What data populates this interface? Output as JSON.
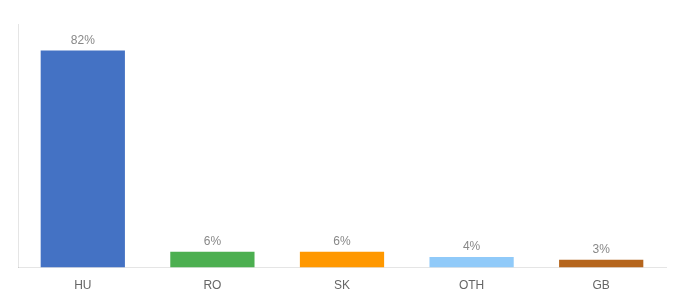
{
  "chart_data": {
    "type": "bar",
    "categories": [
      "HU",
      "RO",
      "SK",
      "OTH",
      "GB"
    ],
    "values": [
      82,
      6,
      6,
      4,
      3
    ],
    "colors": [
      "#4472c4",
      "#4caf50",
      "#ff9800",
      "#90caf9",
      "#b5651d"
    ],
    "ylim": [
      0,
      92
    ],
    "data_labels": true,
    "value_labels": [
      "82%",
      "6%",
      "6%",
      "4%",
      "3%"
    ],
    "grid": false,
    "tick_labels": "x"
  }
}
